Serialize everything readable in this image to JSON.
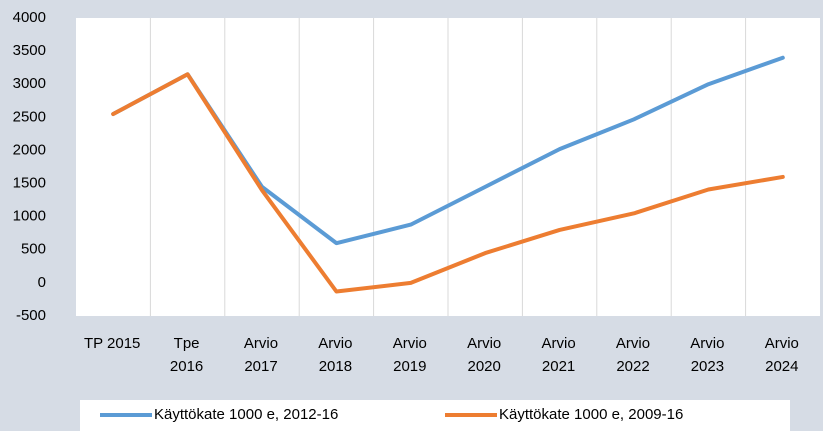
{
  "chart_data": {
    "type": "line",
    "categories": [
      "TP 2015",
      "Tpe\n2016",
      "Arvio\n2017",
      "Arvio\n2018",
      "Arvio\n2019",
      "Arvio\n2020",
      "Arvio\n2021",
      "Arvio\n2022",
      "Arvio\n2023",
      "Arvio\n2024"
    ],
    "series": [
      {
        "name": "Käyttökate 1000 e, 2012-16",
        "color": "#5b9bd5",
        "values": [
          2550,
          3150,
          1450,
          600,
          880,
          1450,
          2020,
          2470,
          3000,
          3400
        ]
      },
      {
        "name": "Käyttökate 1000 e, 2009-16",
        "color": "#ed7d31",
        "values": [
          2550,
          3150,
          1400,
          -130,
          0,
          450,
          800,
          1050,
          1410,
          1600
        ]
      }
    ],
    "ylim": [
      -500,
      4000
    ],
    "yticks": [
      -500,
      0,
      500,
      1000,
      1500,
      2000,
      2500,
      3000,
      3500,
      4000
    ],
    "grid": "vertical",
    "legend": "bottom"
  }
}
